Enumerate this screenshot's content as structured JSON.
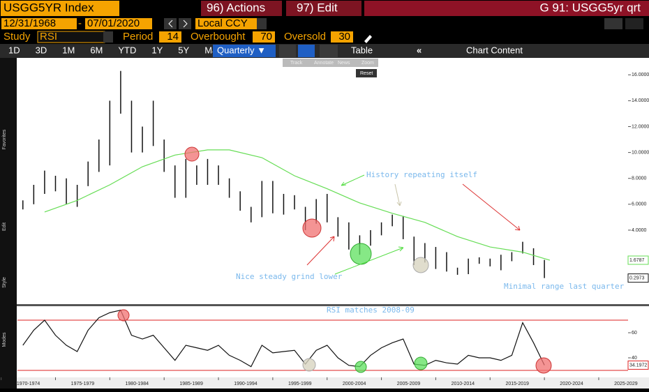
{
  "header": {
    "security": "USGG5YR Index",
    "actions": "96) Actions",
    "edit": "97) Edit",
    "title": "G 91: USGG5yr qrt"
  },
  "controls": {
    "start_date": "12/31/1968",
    "end_date": "07/01/2020",
    "currency": "Local CCY",
    "study_label": "Study",
    "study": "RSI",
    "period_label": "Period",
    "period": "14",
    "overbought_label": "Overbought",
    "overbought": "70",
    "oversold_label": "Oversold",
    "oversold": "30"
  },
  "toolbar": {
    "ranges": [
      "1D",
      "3D",
      "1M",
      "6M",
      "YTD",
      "1Y",
      "5Y",
      "Max"
    ],
    "frequency": "Quarterly ▼",
    "table": "Table",
    "chart_content": "Chart Content",
    "tools": [
      "Track",
      "Annotate",
      "News",
      "Zoom"
    ],
    "reset": "Reset"
  },
  "side_labels": [
    "Favorites",
    "Edit",
    "Style",
    "Modes"
  ],
  "annotations": [
    "History repeating itself",
    "Nice steady grind lower",
    "Minimal range last quarter",
    "RSI matches 2008-09"
  ],
  "chart_data": [
    {
      "type": "hilo",
      "color": "#111111",
      "x": [
        1972,
        1973,
        1974,
        1975,
        1976,
        1977,
        1978,
        1979,
        1980,
        1981,
        1982,
        1983,
        1984,
        1985,
        1986,
        1987,
        1988,
        1989,
        1990,
        1991,
        1992,
        1993,
        1994,
        1995,
        1996,
        1997,
        1998,
        1999,
        2000,
        2001,
        2002,
        2003,
        2004,
        2005,
        2006,
        2007,
        2008,
        2009,
        2010,
        2011,
        2012,
        2013,
        2014,
        2015,
        2016,
        2017,
        2018,
        2019,
        2020
      ],
      "high": [
        6.3,
        7.5,
        8.6,
        8.2,
        8.0,
        7.5,
        9.3,
        11.0,
        14.0,
        16.3,
        14.0,
        12.0,
        14.0,
        11.0,
        9.0,
        9.5,
        9.0,
        9.5,
        9.0,
        8.0,
        7.0,
        5.8,
        7.8,
        7.8,
        6.8,
        6.7,
        5.8,
        6.4,
        6.8,
        5.0,
        4.6,
        3.6,
        4.0,
        4.6,
        5.2,
        5.1,
        3.5,
        3.0,
        2.7,
        2.3,
        1.1,
        1.8,
        1.9,
        1.8,
        2.1,
        2.3,
        3.1,
        2.6,
        1.7
      ],
      "low": [
        5.6,
        6.0,
        6.8,
        7.0,
        6.0,
        5.8,
        7.4,
        8.5,
        9.0,
        13.0,
        10.0,
        10.0,
        10.5,
        8.5,
        6.5,
        6.5,
        7.5,
        7.5,
        7.5,
        6.5,
        5.5,
        4.6,
        5.0,
        5.3,
        5.2,
        5.6,
        4.0,
        4.5,
        4.6,
        3.5,
        2.5,
        2.1,
        2.8,
        3.6,
        4.3,
        3.3,
        1.3,
        1.5,
        1.0,
        0.8,
        0.55,
        0.6,
        1.4,
        1.2,
        0.9,
        1.6,
        2.2,
        1.3,
        0.2973
      ],
      "ma": {
        "color": "#66dd55",
        "x": [
          1974,
          1977,
          1980,
          1983,
          1986,
          1989,
          1991,
          1994,
          1997,
          2000,
          2003,
          2006,
          2009,
          2012,
          2015,
          2018,
          2020.5
        ],
        "values": [
          5.4,
          6.3,
          7.5,
          8.9,
          9.8,
          10.2,
          10.2,
          9.6,
          8.2,
          7.2,
          6.1,
          5.3,
          4.6,
          3.5,
          2.7,
          2.3,
          1.6787
        ]
      },
      "markers": [
        {
          "value": 1.6787,
          "label": "1.6787",
          "color": "#66dd55"
        },
        {
          "value": 0.2973,
          "label": "0.2973",
          "color": "#111111"
        }
      ],
      "xlim": [
        1971.5,
        2027.7
      ],
      "ylim": [
        -1.5,
        17.2
      ],
      "yticks": [
        {
          "value": 4,
          "label": "4.0000"
        },
        {
          "value": 6,
          "label": "6.0000"
        },
        {
          "value": 8,
          "label": "8.0000"
        },
        {
          "value": 10,
          "label": "10.0000"
        },
        {
          "value": 12,
          "label": "12.0000"
        },
        {
          "value": 14,
          "label": "14.0000"
        },
        {
          "value": 16,
          "label": "16.0000"
        }
      ]
    },
    {
      "type": "line",
      "color": "#111111",
      "x": [
        1972,
        1973,
        1974,
        1975,
        1976,
        1977,
        1978,
        1979,
        1980,
        1981,
        1982,
        1983,
        1984,
        1985,
        1986,
        1987,
        1988,
        1989,
        1990,
        1991,
        1992,
        1993,
        1994,
        1995,
        1996,
        1997,
        1998,
        1999,
        2000,
        2001,
        2002,
        2003,
        2004,
        2005,
        2006,
        2007,
        2008,
        2009,
        2010,
        2011,
        2012,
        2013,
        2014,
        2015,
        2016,
        2017,
        2018,
        2019,
        2020
      ],
      "values": [
        50,
        62,
        70,
        58,
        50,
        45,
        62,
        72,
        76,
        78,
        58,
        55,
        58,
        48,
        38,
        50,
        48,
        46,
        50,
        42,
        38,
        33,
        50,
        44,
        45,
        46,
        35,
        46,
        50,
        40,
        34,
        33,
        42,
        48,
        52,
        55,
        35,
        34,
        38,
        36,
        35,
        42,
        40,
        40,
        38,
        42,
        68,
        52,
        34.1972
      ],
      "reference_lines": [
        70,
        30
      ],
      "reference_color": "#dd2222",
      "marker": {
        "value": 34.1972,
        "label": "34.1972",
        "color": "#dd2222"
      },
      "xlim": [
        1971.5,
        2027.7
      ],
      "ylim": [
        25,
        81.7
      ],
      "yticks": [
        40,
        60
      ],
      "xticks": [
        {
          "value": 1970,
          "label": "1970-1974"
        },
        {
          "value": 1975,
          "label": "1975-1979"
        },
        {
          "value": 1980,
          "label": "1980-1984"
        },
        {
          "value": 1985,
          "label": "1985-1989"
        },
        {
          "value": 1990,
          "label": "1990-1994"
        },
        {
          "value": 1995,
          "label": "1995-1999"
        },
        {
          "value": 2000,
          "label": "2000-2004"
        },
        {
          "value": 2005,
          "label": "2005-2009"
        },
        {
          "value": 2010,
          "label": "2010-2014"
        },
        {
          "value": 2015,
          "label": "2015-2019"
        },
        {
          "value": 2020,
          "label": "2020-2024"
        },
        {
          "value": 2025,
          "label": "2025-2029"
        }
      ]
    }
  ]
}
